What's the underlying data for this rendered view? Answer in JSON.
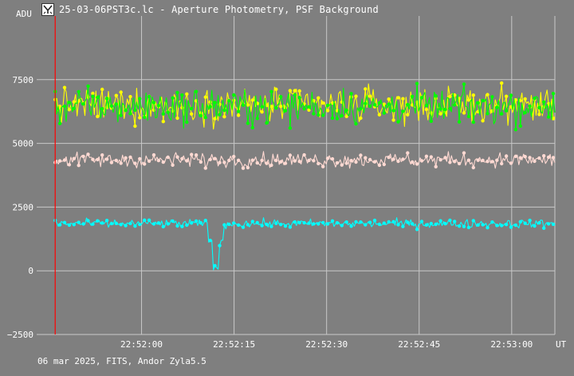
{
  "window": {
    "title": "25-03-06PST3c.lc - Aperture Photometry, PSF Background",
    "footer": "06 mar 2025, FITS, Andor Zyla5.5",
    "icon": "app-logo-icon"
  },
  "chart_data": {
    "type": "scatter",
    "title": "25-03-06PST3c.lc - Aperture Photometry, PSF Background",
    "ylabel": "ADU",
    "xlabel": "UT",
    "ylim": [
      -2500,
      10000
    ],
    "xlim": [
      "22:51:43",
      "22:53:07"
    ],
    "y_ticks": [
      7500,
      5000,
      2500,
      0,
      -2500
    ],
    "y_tick_labels": [
      "7500",
      "5000",
      "2500",
      "0",
      "−2500"
    ],
    "x_ticks": [
      "22:52:00",
      "22:52:15",
      "22:52:30",
      "22:52:45",
      "22:53:00"
    ],
    "x_unit_label": "UT",
    "grid": true,
    "marker_line": {
      "x": "22:51:46",
      "color": "#ff0000"
    },
    "series": [
      {
        "color": "#ffff00",
        "mean": 6500,
        "scatter": 600,
        "x_start": "22:51:46",
        "x_end": "22:53:07"
      },
      {
        "color": "#00ff00",
        "mean": 6450,
        "scatter": 600,
        "x_start": "22:51:46",
        "x_end": "22:53:07"
      },
      {
        "color": "#ffd9d2",
        "mean": 4350,
        "scatter": 250,
        "x_start": "22:51:46",
        "x_end": "22:53:07"
      },
      {
        "color": "#00ffff",
        "mean": 1850,
        "scatter": 150,
        "x_start": "22:51:46",
        "x_end": "22:53:07",
        "dip": {
          "x": "22:52:12",
          "min": 0
        }
      }
    ]
  }
}
